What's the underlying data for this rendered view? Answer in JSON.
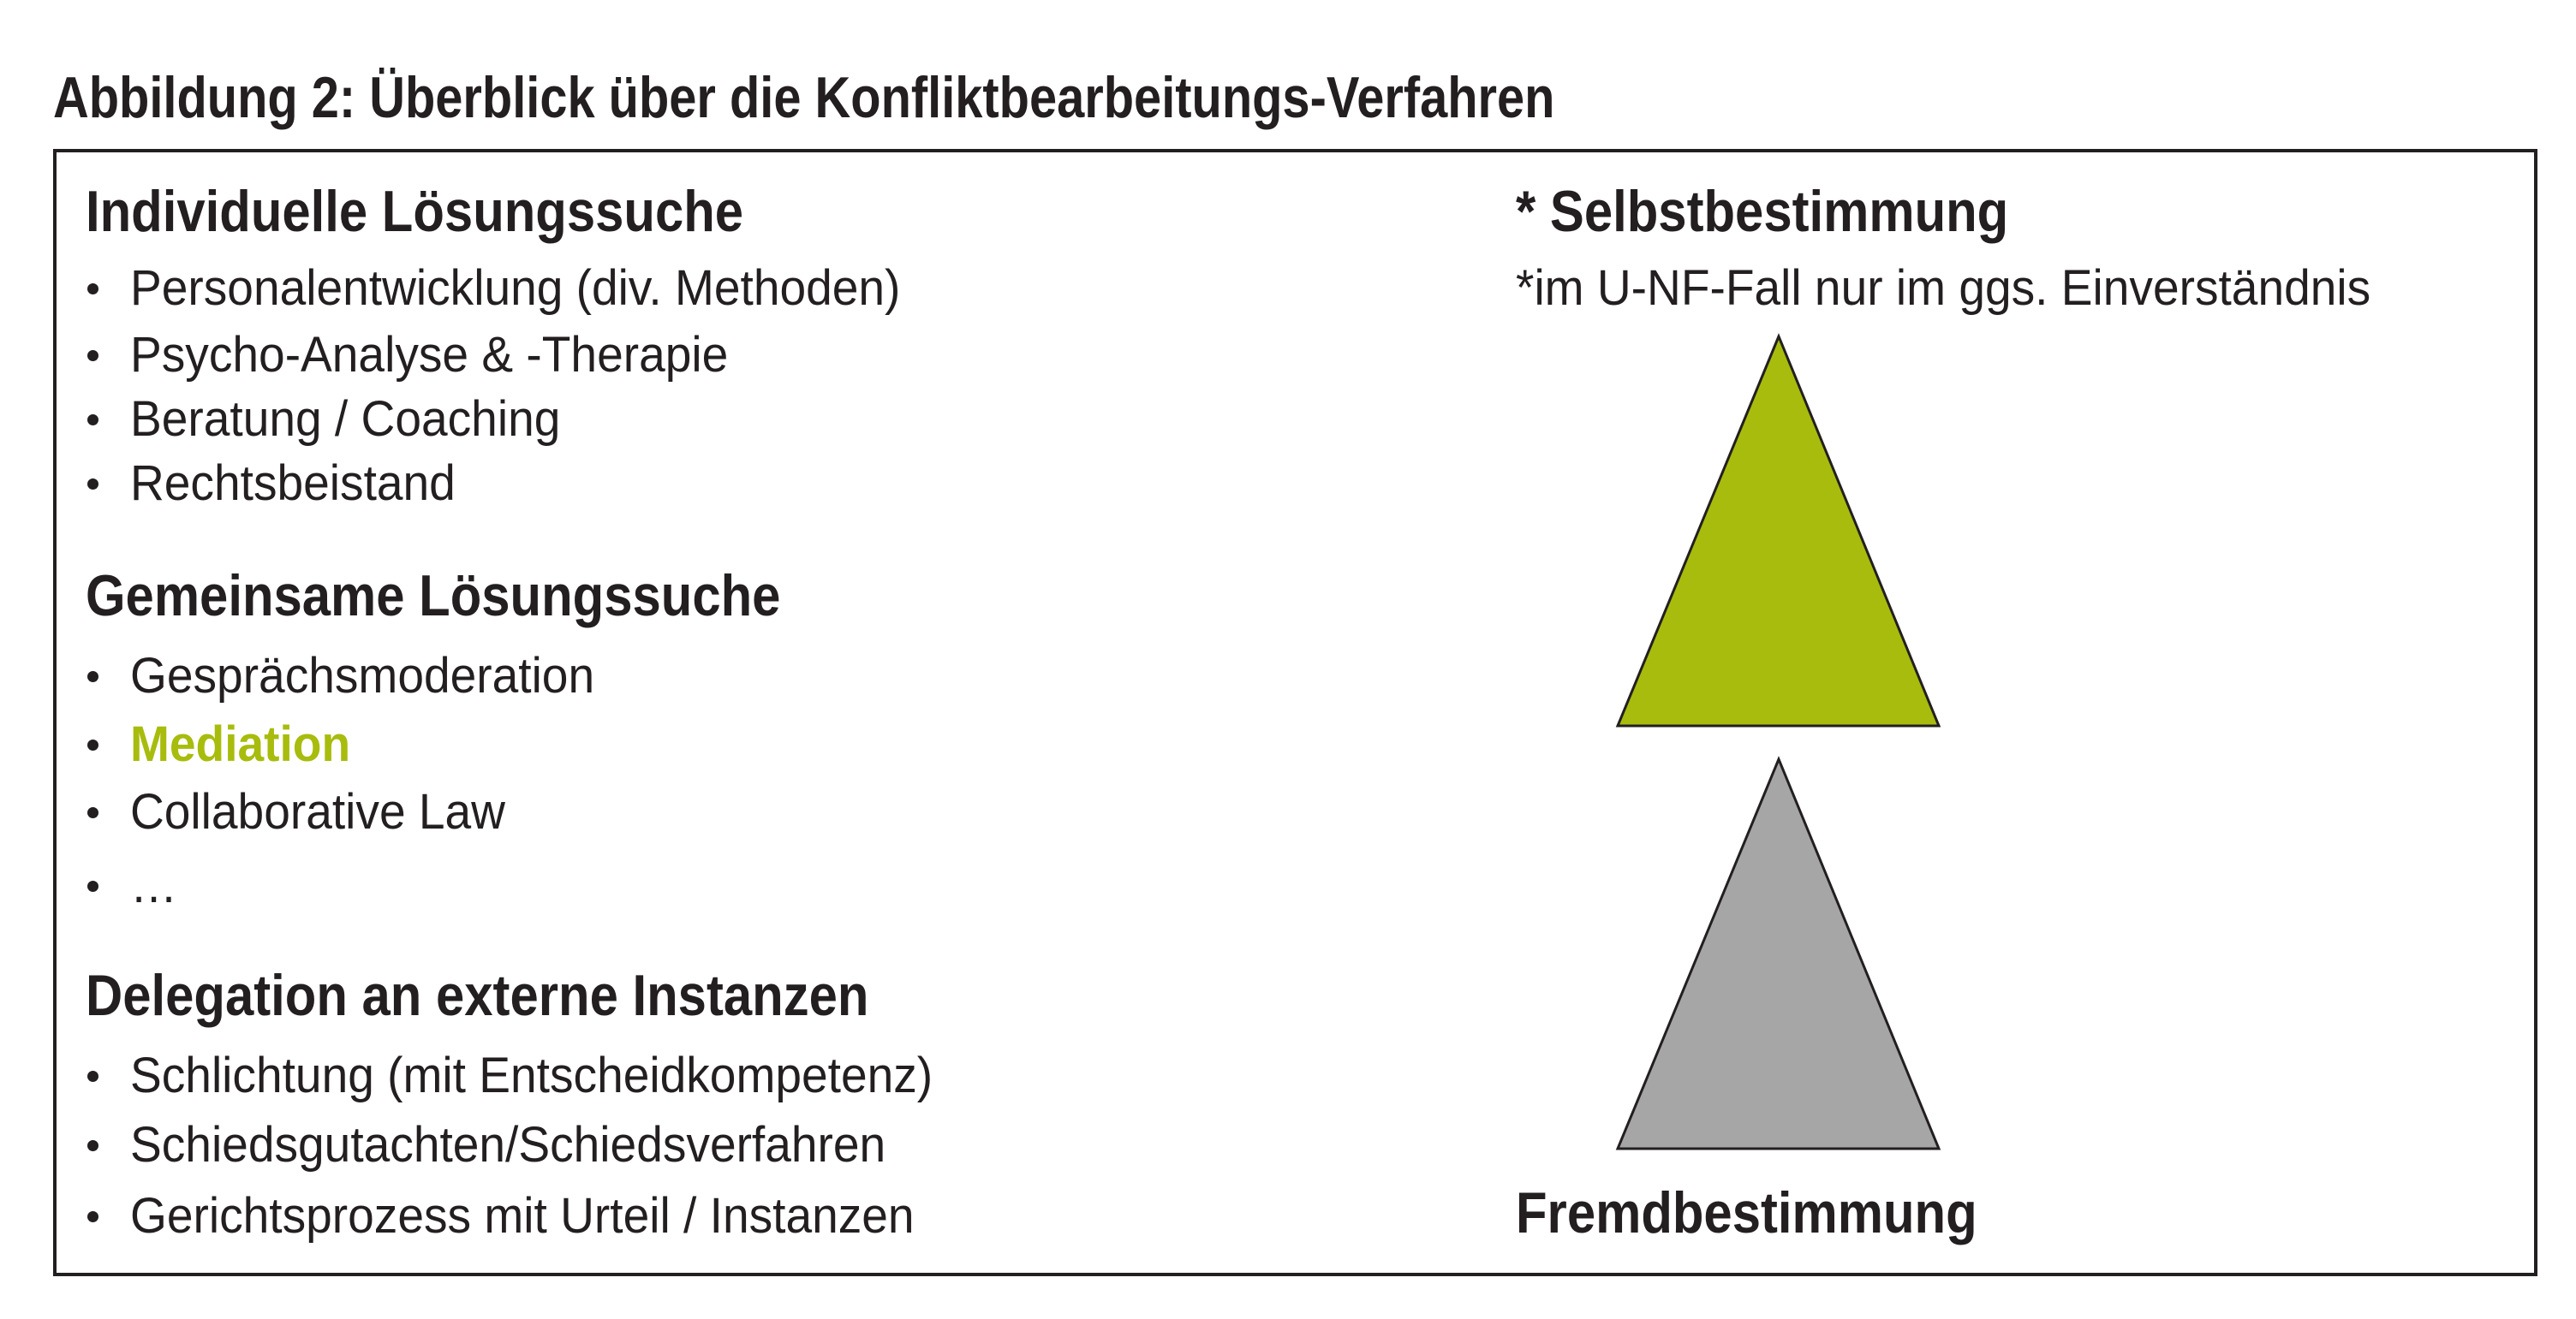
{
  "title": "Abbildung 2: Überblick über die Konfliktbearbeitungs-Verfahren",
  "sections": [
    {
      "heading": "Individuelle Lösungssuche",
      "items": [
        "Personalentwicklung (div. Methoden)",
        "Psycho-Analyse & -Therapie",
        "Beratung / Coaching",
        "Rechtsbeistand"
      ]
    },
    {
      "heading": "Gemeinsame Lösungssuche",
      "items": [
        "Gesprächsmoderation",
        "Mediation",
        "Collaborative Law",
        "…"
      ]
    },
    {
      "heading": "Delegation an externe Instanzen",
      "items": [
        "Schlichtung (mit Entscheidkompetenz)",
        "Schiedsgutachten/Schiedsverfahren",
        "Gerichtsprozess mit Urteil / Instanzen"
      ]
    }
  ],
  "right": {
    "top_label": "* Selbstbestimmung",
    "footnote": "*im U-NF-Fall nur im ggs. Einverständnis",
    "bottom_label": "Fremdbestimmung"
  },
  "colors": {
    "accent_green": "#a8bc0d",
    "grey": "#a6a6a6",
    "text": "#231f20"
  },
  "highlighted_item": "Mediation"
}
